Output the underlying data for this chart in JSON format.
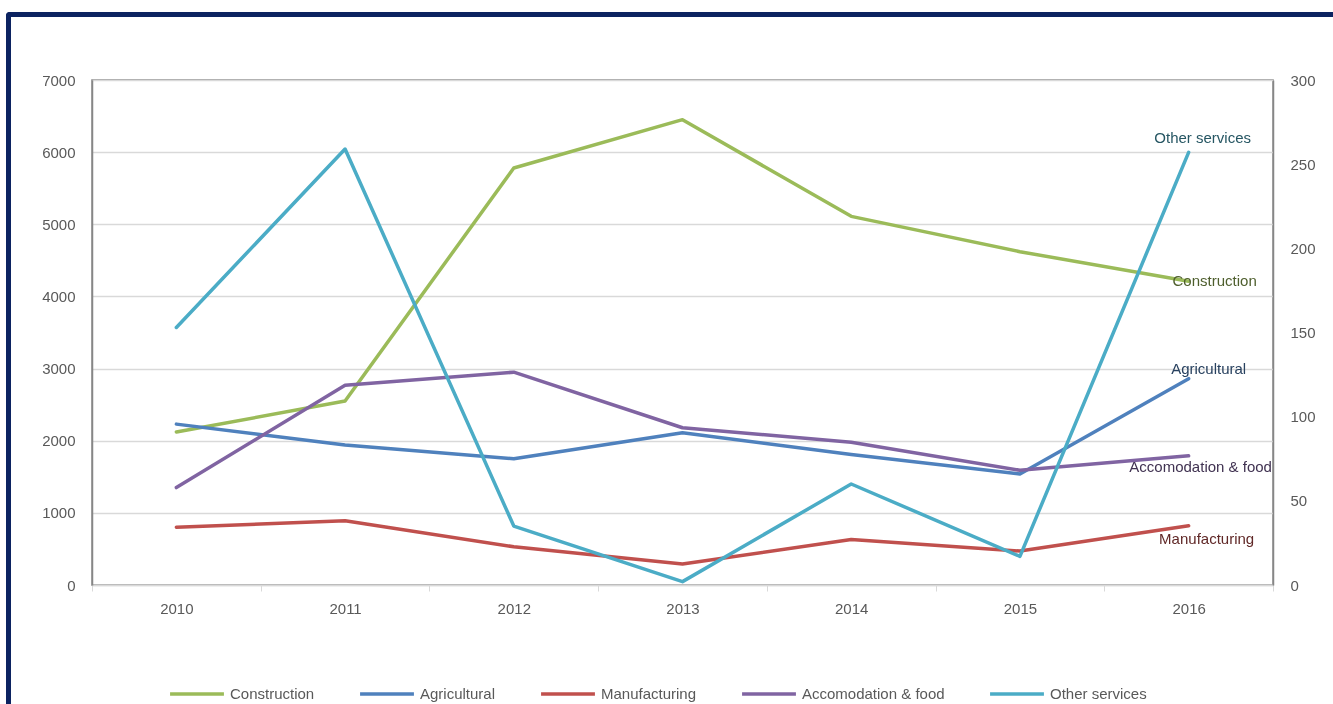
{
  "chart_data": {
    "type": "line",
    "categories": [
      "2010",
      "2011",
      "2012",
      "2013",
      "2014",
      "2015",
      "2016"
    ],
    "ylim": [
      0,
      7000
    ],
    "yticks": [
      0,
      1000,
      2000,
      3000,
      4000,
      5000,
      6000,
      7000
    ],
    "y2lim": [
      0,
      300
    ],
    "y2ticks": [
      0,
      50,
      100,
      150,
      200,
      250,
      300
    ],
    "grid": "y",
    "legend": "bottom",
    "series": [
      {
        "name": "Construction",
        "color": "#9bbb59",
        "values": [
          2120,
          2550,
          5780,
          6450,
          5110,
          4620,
          4210
        ]
      },
      {
        "name": "Agricultural",
        "color": "#4f81bd",
        "values": [
          2230,
          1940,
          1750,
          2110,
          1810,
          1540,
          2860
        ]
      },
      {
        "name": "Manufacturing",
        "color": "#c0504d",
        "values": [
          800,
          890,
          530,
          290,
          630,
          470,
          820
        ]
      },
      {
        "name": "Accomodation & food",
        "color": "#8064a2",
        "values": [
          1350,
          2770,
          2950,
          2180,
          1980,
          1590,
          1790
        ]
      },
      {
        "name": "Other services",
        "color": "#4bacc6",
        "axis": "y2",
        "values": [
          153,
          259,
          35,
          2,
          60,
          17,
          257
        ]
      }
    ]
  }
}
